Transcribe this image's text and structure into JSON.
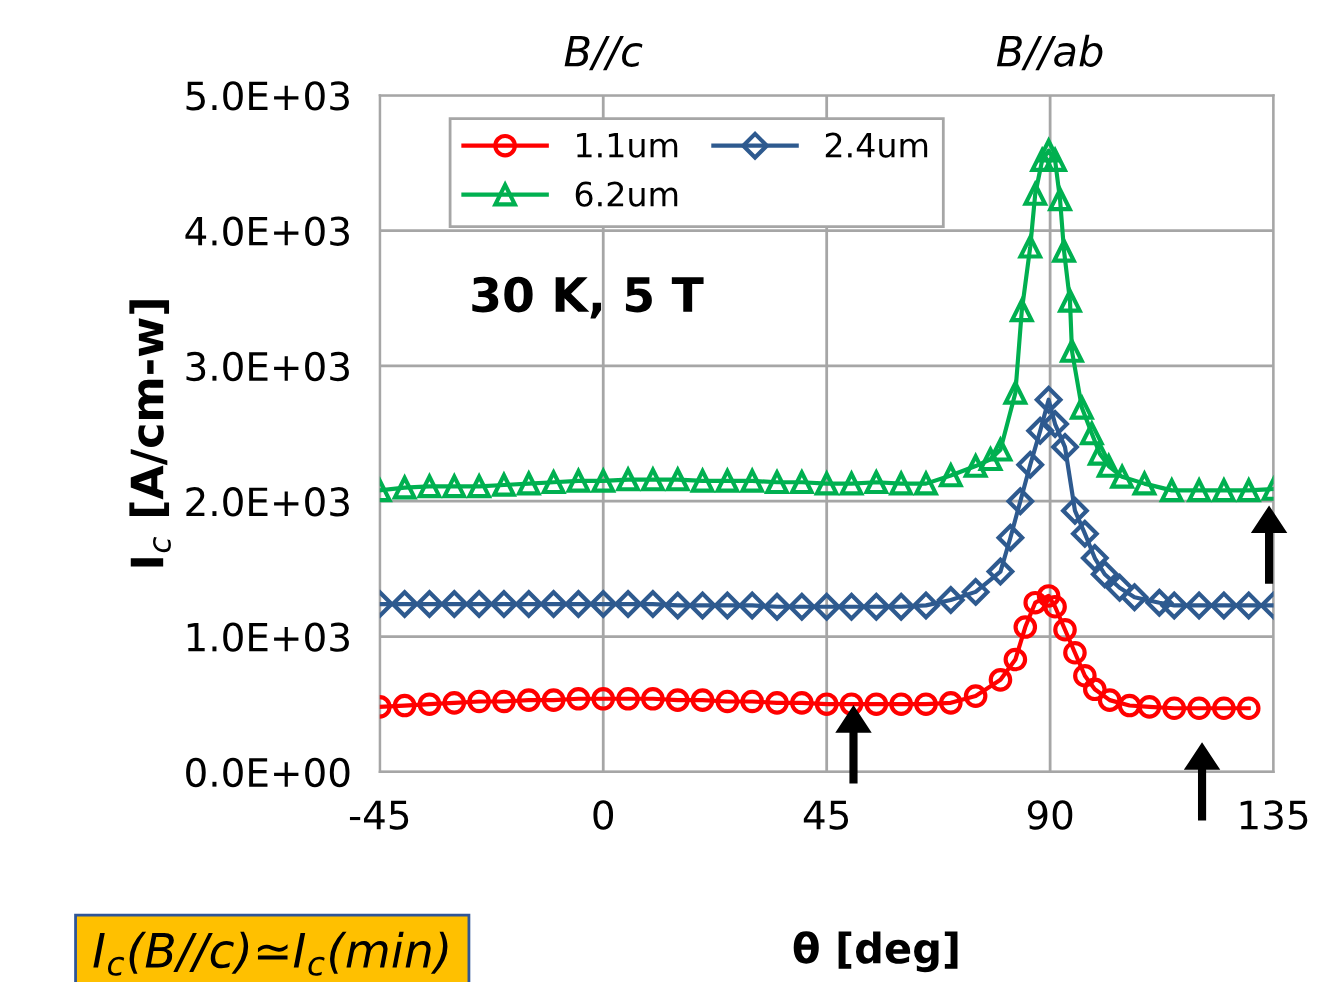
{
  "chart_data": {
    "type": "line",
    "xlabel": "θ [deg]",
    "ylabel": "I$_{c}$ [A/cm-w]",
    "xlim": [
      -45,
      135
    ],
    "xticks": [
      -45,
      0,
      45,
      90,
      135
    ],
    "ylim": [
      0,
      5000
    ],
    "yticks": [
      {
        "value": 0,
        "label": "0.0E+00"
      },
      {
        "value": 1000,
        "label": "1.0E+03"
      },
      {
        "value": 2000,
        "label": "2.0E+03"
      },
      {
        "value": 3000,
        "label": "3.0E+03"
      },
      {
        "value": 4000,
        "label": "4.0E+03"
      },
      {
        "value": 5000,
        "label": "5.0E+03"
      }
    ],
    "grid": true,
    "legend": "top left",
    "line_style": "solid",
    "annotations": [
      "B//c",
      "B//ab",
      "30 K, 5 T",
      "I$_{c}$(B//c)≃I$_{c}$(min)"
    ],
    "series": [
      {
        "name": "1.1um",
        "color": "#ff0000",
        "marker": "circle",
        "x": [
          -45,
          -40,
          -35,
          -30,
          -25,
          -20,
          -15,
          -10,
          -5,
          0,
          5,
          10,
          15,
          20,
          25,
          30,
          35,
          40,
          45,
          50,
          55,
          60,
          65,
          70,
          75,
          80,
          83,
          85,
          87,
          89.7,
          91,
          93,
          95,
          97,
          99,
          102,
          106,
          110,
          115,
          120,
          125,
          130
        ],
        "values": [
          480,
          490,
          500,
          510,
          520,
          520,
          530,
          530,
          540,
          540,
          540,
          540,
          530,
          530,
          520,
          520,
          510,
          510,
          500,
          500,
          500,
          500,
          500,
          510,
          560,
          680,
          830,
          1070,
          1250,
          1300,
          1220,
          1050,
          880,
          710,
          610,
          530,
          490,
          480,
          470,
          470,
          470,
          470
        ]
      },
      {
        "name": "2.4um",
        "color": "#2e5a8f",
        "marker": "diamond",
        "x": [
          -45,
          -40,
          -35,
          -30,
          -25,
          -20,
          -15,
          -10,
          -5,
          0,
          5,
          10,
          15,
          20,
          25,
          30,
          35,
          40,
          45,
          50,
          55,
          60,
          65,
          70,
          75,
          80,
          82,
          84,
          86,
          88,
          89.7,
          91,
          93,
          95,
          97,
          99,
          101,
          104,
          107,
          112,
          115,
          120,
          125,
          130,
          135
        ],
        "values": [
          1240,
          1240,
          1240,
          1240,
          1240,
          1240,
          1240,
          1240,
          1240,
          1240,
          1240,
          1240,
          1230,
          1230,
          1230,
          1230,
          1220,
          1220,
          1220,
          1220,
          1220,
          1220,
          1230,
          1270,
          1330,
          1480,
          1730,
          2000,
          2270,
          2520,
          2750,
          2570,
          2400,
          1930,
          1760,
          1580,
          1460,
          1360,
          1290,
          1250,
          1230,
          1230,
          1230,
          1230,
          1230
        ]
      },
      {
        "name": "6.2um",
        "color": "#00b050",
        "marker": "triangle",
        "x": [
          -45,
          -40,
          -35,
          -30,
          -25,
          -20,
          -15,
          -10,
          -5,
          0,
          5,
          10,
          15,
          20,
          25,
          30,
          35,
          40,
          45,
          50,
          55,
          60,
          65,
          70,
          75,
          78,
          80,
          83,
          84.3,
          86,
          87,
          88.4,
          89.7,
          91,
          92,
          92.8,
          94,
          94.4,
          96.4,
          98.4,
          100,
          101.8,
          104.5,
          109,
          114.5,
          120,
          125,
          130,
          135
        ],
        "values": [
          2080,
          2100,
          2110,
          2110,
          2110,
          2120,
          2130,
          2140,
          2150,
          2150,
          2160,
          2160,
          2160,
          2150,
          2150,
          2150,
          2140,
          2140,
          2130,
          2130,
          2140,
          2130,
          2130,
          2190,
          2260,
          2310,
          2380,
          2800,
          3410,
          3880,
          4270,
          4520,
          4590,
          4520,
          4230,
          3850,
          3480,
          3110,
          2690,
          2500,
          2350,
          2260,
          2180,
          2130,
          2080,
          2080,
          2080,
          2080,
          2090
        ]
      }
    ]
  }
}
